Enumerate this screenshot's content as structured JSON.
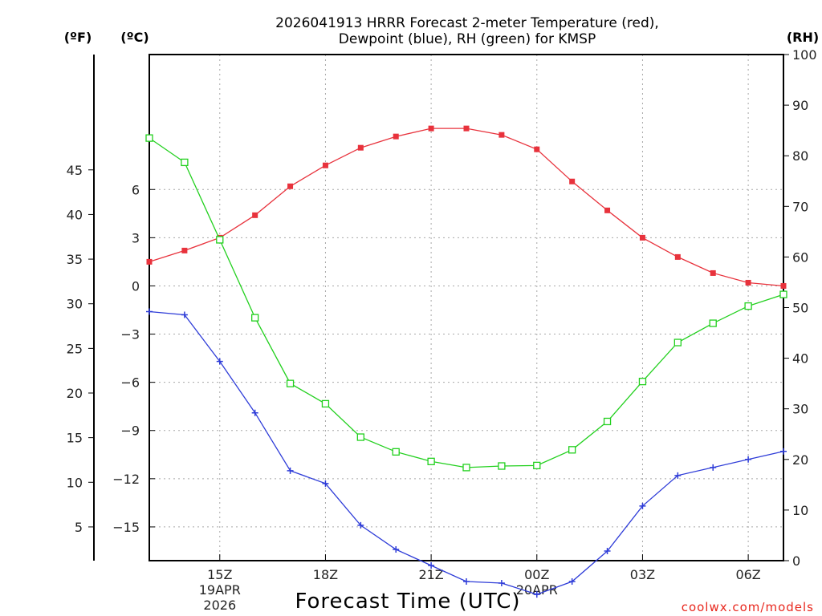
{
  "chart_data": {
    "type": "line",
    "title_lines": [
      "2026041913 HRRR Forecast 2-meter Temperature (red),",
      "Dewpoint (blue), RH (green) for KMSP"
    ],
    "xlabel": "Forecast Time (UTC)",
    "credit": "coolwx.com/models",
    "units": {
      "fahrenheit": "(ºF)",
      "celsius": "(ºC)",
      "rh": "(RH)"
    },
    "x_hours": [
      13,
      14,
      15,
      16,
      17,
      18,
      19,
      20,
      21,
      22,
      23,
      24,
      25,
      26,
      27,
      28,
      29,
      30,
      31
    ],
    "x_ticks": [
      {
        "hour": 15,
        "label": "15Z",
        "date_lines": [
          "19APR",
          "2026"
        ]
      },
      {
        "hour": 18,
        "label": "18Z",
        "date_lines": []
      },
      {
        "hour": 21,
        "label": "21Z",
        "date_lines": []
      },
      {
        "hour": 24,
        "label": "00Z",
        "date_lines": [
          "20APR"
        ]
      },
      {
        "hour": 27,
        "label": "03Z",
        "date_lines": []
      },
      {
        "hour": 30,
        "label": "06Z",
        "date_lines": []
      }
    ],
    "celsius_axis": {
      "range": [
        -17.1,
        14.4
      ],
      "ticks": [
        6,
        3,
        0,
        -3,
        -6,
        -9,
        -12,
        -15
      ]
    },
    "fahrenheit_axis": {
      "ticks": [
        45,
        40,
        35,
        30,
        25,
        20,
        15,
        10,
        5
      ]
    },
    "rh_axis": {
      "range": [
        0,
        100
      ],
      "ticks": [
        100,
        90,
        80,
        70,
        60,
        50,
        40,
        30,
        20,
        10,
        0
      ]
    },
    "series": [
      {
        "name": "Temperature",
        "units": "C",
        "color": "#e8323c",
        "marker": "filled-square",
        "values": [
          1.5,
          2.2,
          3.0,
          4.4,
          6.2,
          7.5,
          8.6,
          9.3,
          9.8,
          9.8,
          9.4,
          8.5,
          6.5,
          4.7,
          3.0,
          1.8,
          0.8,
          0.2,
          0.0
        ]
      },
      {
        "name": "Dewpoint",
        "units": "C",
        "color": "#2e3cd8",
        "marker": "plus",
        "values": [
          -1.6,
          -1.8,
          -4.7,
          -7.9,
          -11.5,
          -12.3,
          -14.9,
          -16.4,
          -17.4,
          -18.4,
          -18.5,
          -19.2,
          -18.4,
          -16.5,
          -13.7,
          -11.8,
          -11.3,
          -10.8,
          -10.3
        ]
      },
      {
        "name": "Relative Humidity",
        "units": "%",
        "color": "#22d01e",
        "marker": "open-square",
        "values": [
          83.5,
          78.7,
          63.4,
          48.0,
          35.0,
          31.0,
          24.4,
          21.5,
          19.6,
          18.4,
          18.7,
          18.8,
          21.9,
          27.5,
          35.4,
          43.1,
          46.9,
          50.3,
          52.6
        ]
      }
    ]
  }
}
